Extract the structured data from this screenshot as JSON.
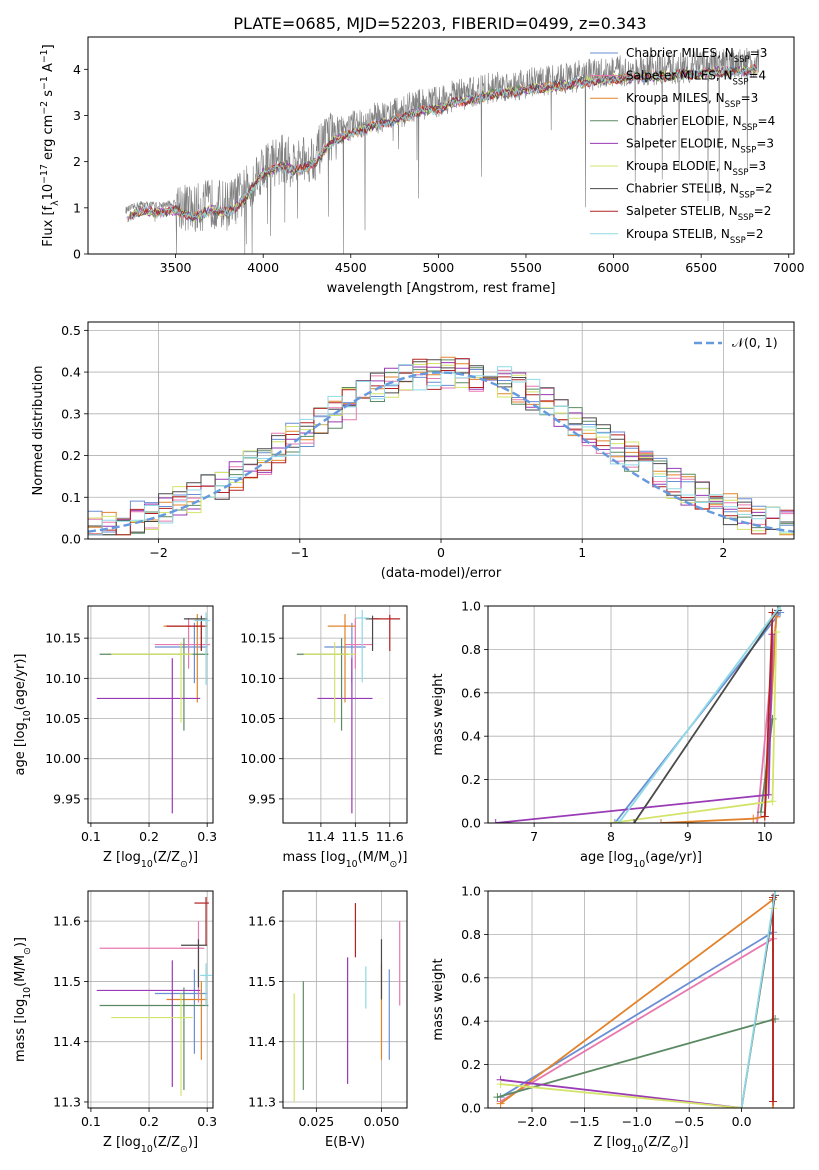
{
  "title": "PLATE=0685, MJD=52203, FIBERID=0499, z=0.343",
  "colors": {
    "model": [
      "#6a8fd4",
      "#e879b0",
      "#e2832c",
      "#5b8a62",
      "#9a3ab5",
      "#d4e36a",
      "#4a4a4a",
      "#b22222",
      "#8fd9e6"
    ],
    "data_spectrum": "#808080",
    "normal": "#6699dd"
  },
  "legend_spectrum": {
    "placement": "upper right",
    "entries": [
      {
        "pre": "Chabrier MILES, N",
        "sub": "SSP",
        "post": "=3"
      },
      {
        "pre": "Salpeter MILES, N",
        "sub": "SSP",
        "post": "=4"
      },
      {
        "pre": "Kroupa MILES, N",
        "sub": "SSP",
        "post": "=3"
      },
      {
        "pre": "Chabrier ELODIE, N",
        "sub": "SSP",
        "post": "=4"
      },
      {
        "pre": "Salpeter ELODIE, N",
        "sub": "SSP",
        "post": "=3"
      },
      {
        "pre": "Kroupa ELODIE, N",
        "sub": "SSP",
        "post": "=3"
      },
      {
        "pre": "Chabrier STELIB, N",
        "sub": "SSP",
        "post": "=2"
      },
      {
        "pre": "Salpeter STELIB, N",
        "sub": "SSP",
        "post": "=2"
      },
      {
        "pre": "Kroupa STELIB, N",
        "sub": "SSP",
        "post": "=2"
      }
    ]
  },
  "legend_hist": {
    "label": "𝒩(0, 1)",
    "placement": "upper right"
  },
  "chart_data": [
    {
      "id": "spectrum",
      "type": "line",
      "xlabel": "wavelength [Angstrom, rest frame]",
      "ylabel": {
        "pre": "Flux [f",
        "sub": "λ",
        "mid": "10",
        "sup1": "−17",
        "post": " erg cm",
        "sup2": "−2",
        "post2": " s",
        "sup3": "−1",
        "post3": " A",
        "sup4": "−1",
        "end": "]"
      },
      "xlim": [
        3000,
        7030
      ],
      "ylim": [
        0,
        4.7
      ],
      "xticks": [
        3500,
        4000,
        4500,
        5000,
        5500,
        6000,
        6500,
        7000
      ],
      "yticks": [
        0,
        1,
        2,
        3,
        4
      ],
      "continuum_x": [
        3220,
        3300,
        3400,
        3500,
        3600,
        3700,
        3800,
        3900,
        4000,
        4100,
        4200,
        4300,
        4400,
        4500,
        4600,
        4700,
        4800,
        4900,
        5000,
        5100,
        5200,
        5300,
        5400,
        5500,
        5600,
        5700,
        5800,
        5900,
        6000,
        6100,
        6200,
        6300,
        6400,
        6500,
        6600,
        6700,
        6800
      ],
      "continuum_y": [
        0.95,
        1.08,
        1.05,
        1.1,
        0.95,
        1.1,
        1.05,
        1.35,
        1.9,
        2.05,
        1.95,
        2.15,
        2.6,
        2.75,
        2.9,
        3.0,
        3.1,
        3.25,
        3.3,
        3.45,
        3.5,
        3.6,
        3.65,
        3.7,
        3.75,
        3.8,
        3.85,
        3.9,
        3.95,
        3.95,
        4.0,
        4.0,
        4.05,
        4.05,
        4.1,
        4.1,
        4.15
      ]
    },
    {
      "id": "residuals",
      "type": "histogram",
      "xlabel": "(data-model)/error",
      "ylabel": "Normed distribution",
      "xlim": [
        -2.5,
        2.5
      ],
      "ylim": [
        0,
        0.52
      ],
      "xticks": [
        -2,
        -1,
        0,
        1,
        2
      ],
      "yticks": [
        0.0,
        0.1,
        0.2,
        0.3,
        0.4,
        0.5
      ],
      "bin_width": 0.1,
      "normal": {
        "mean": 0,
        "sigma": 1
      }
    },
    {
      "id": "age_vs_Z",
      "type": "scatter",
      "xlabel": {
        "pre": "Z [log",
        "sub": "10",
        "mid": "(Z/Z",
        "sub2": "⊙",
        "end": ")]"
      },
      "ylabel": {
        "pre": "age  [log",
        "sub": "10",
        "end": "(age/yr)]"
      },
      "xlim": [
        0.095,
        0.31
      ],
      "ylim": [
        9.92,
        10.19
      ],
      "xticks": [
        0.1,
        0.2,
        0.3
      ],
      "yticks": [
        9.95,
        10.0,
        10.05,
        10.1,
        10.15
      ],
      "points": [
        {
          "x": 0.278,
          "y": 10.139,
          "xerr": [
            0.068,
            0.022
          ],
          "yerr": [
            0.045,
            0.03
          ]
        },
        {
          "x": 0.268,
          "y": 10.142,
          "xerr": [
            0.058,
            0.037
          ],
          "yerr": [
            0.03,
            0.033
          ]
        },
        {
          "x": 0.283,
          "y": 10.165,
          "xerr": [
            0.058,
            0.012
          ],
          "yerr": [
            0.095,
            0.015
          ]
        },
        {
          "x": 0.26,
          "y": 10.13,
          "xerr": [
            0.145,
            0.042
          ],
          "yerr": [
            0.095,
            0.02
          ]
        },
        {
          "x": 0.24,
          "y": 10.075,
          "xerr": [
            0.13,
            0.048
          ],
          "yerr": [
            0.143,
            0.05
          ]
        },
        {
          "x": 0.255,
          "y": 10.13,
          "xerr": [
            0.12,
            0.02
          ],
          "yerr": [
            0.085,
            0.015
          ]
        },
        {
          "x": 0.29,
          "y": 10.174,
          "xerr": [
            0.03,
            0.01
          ],
          "yerr": [
            0.04,
            0.004
          ]
        },
        {
          "x": 0.29,
          "y": 10.165,
          "xerr": [
            0.06,
            0.01
          ],
          "yerr": [
            0.03,
            0.005
          ]
        },
        {
          "x": 0.298,
          "y": 10.172,
          "xerr": [
            0.02,
            0.007
          ],
          "yerr": [
            0.08,
            0.01
          ]
        }
      ]
    },
    {
      "id": "age_vs_mass",
      "type": "scatter",
      "xlabel": {
        "pre": "mass [log",
        "sub": "10",
        "mid": "(M/M",
        "sub2": "⊙",
        "end": ")]"
      },
      "ylabel": "",
      "xlim": [
        11.29,
        11.65
      ],
      "ylim": [
        9.92,
        10.19
      ],
      "xticks": [
        11.4,
        11.5,
        11.6
      ],
      "yticks": [
        9.95,
        10.0,
        10.05,
        10.1,
        10.15
      ],
      "points": [
        {
          "x": 11.49,
          "y": 10.139,
          "xerr": [
            0.08,
            0.04
          ],
          "yerr": [
            0.045,
            0.03
          ]
        },
        {
          "x": 11.5,
          "y": 10.142,
          "xerr": [
            0.03,
            0.05
          ],
          "yerr": [
            0.03,
            0.033
          ]
        },
        {
          "x": 11.47,
          "y": 10.165,
          "xerr": [
            0.05,
            0.03
          ],
          "yerr": [
            0.095,
            0.015
          ]
        },
        {
          "x": 11.46,
          "y": 10.13,
          "xerr": [
            0.13,
            0.02
          ],
          "yerr": [
            0.095,
            0.02
          ]
        },
        {
          "x": 11.49,
          "y": 10.075,
          "xerr": [
            0.1,
            0.06
          ],
          "yerr": [
            0.143,
            0.05
          ]
        },
        {
          "x": 11.44,
          "y": 10.13,
          "xerr": [
            0.09,
            0.06
          ],
          "yerr": [
            0.085,
            0.015
          ]
        },
        {
          "x": 11.55,
          "y": 10.174,
          "xerr": [
            0.02,
            0.02
          ],
          "yerr": [
            0.04,
            0.004
          ]
        },
        {
          "x": 11.6,
          "y": 10.174,
          "xerr": [
            0.05,
            0.03
          ],
          "yerr": [
            0.04,
            0.005
          ]
        },
        {
          "x": 11.52,
          "y": 10.175,
          "xerr": [
            0.02,
            0.02
          ],
          "yerr": [
            0.08,
            0.01
          ]
        }
      ]
    },
    {
      "id": "weight_vs_age",
      "type": "line",
      "xlabel": {
        "pre": "age  [log",
        "sub": "10",
        "end": "(age/yr)]"
      },
      "ylabel": "mass weight",
      "xlim": [
        6.4,
        10.38
      ],
      "ylim": [
        0,
        1.0
      ],
      "xticks": [
        7,
        8,
        9,
        10
      ],
      "yticks": [
        0.0,
        0.2,
        0.4,
        0.6,
        0.8,
        1.0
      ],
      "series": [
        {
          "x": [
            8.05,
            10.2
          ],
          "y": [
            0.0,
            0.97
          ]
        },
        {
          "x": [
            9.9,
            10.15
          ],
          "y": [
            0.0,
            0.95
          ]
        },
        {
          "x": [
            8.65,
            9.85,
            10.0,
            10.15
          ],
          "y": [
            0.0,
            0.02,
            0.03,
            0.95
          ]
        },
        {
          "x": [
            9.95,
            10.1
          ],
          "y": [
            0.05,
            0.48
          ]
        },
        {
          "x": [
            6.5,
            10.05,
            10.1
          ],
          "y": [
            0.0,
            0.13,
            0.87
          ]
        },
        {
          "x": [
            8.0,
            10.1,
            10.15
          ],
          "y": [
            0.0,
            0.1,
            0.88
          ]
        },
        {
          "x": [
            8.3,
            10.17
          ],
          "y": [
            0.0,
            0.98
          ]
        },
        {
          "x": [
            10.0,
            10.1
          ],
          "y": [
            0.03,
            0.97
          ]
        },
        {
          "x": [
            8.1,
            10.2
          ],
          "y": [
            0.0,
            1.0
          ]
        }
      ]
    },
    {
      "id": "mass_vs_Z",
      "type": "scatter",
      "xlabel": {
        "pre": "Z [log",
        "sub": "10",
        "mid": "(Z/Z",
        "sub2": "⊙",
        "end": ")]"
      },
      "ylabel": {
        "pre": "mass [log",
        "sub": "10",
        "mid": "(M/M",
        "sub2": "⊙",
        "end": ")]"
      },
      "xlim": [
        0.095,
        0.31
      ],
      "ylim": [
        11.29,
        11.65
      ],
      "xticks": [
        0.1,
        0.2,
        0.3
      ],
      "yticks": [
        11.3,
        11.4,
        11.5,
        11.6
      ],
      "points": [
        {
          "x": 0.278,
          "y": 11.48,
          "xerr": [
            0.068,
            0.022
          ],
          "yerr": [
            0.1,
            0.04
          ]
        },
        {
          "x": 0.285,
          "y": 11.555,
          "xerr": [
            0.17,
            0.01
          ],
          "yerr": [
            0.09,
            0.045
          ]
        },
        {
          "x": 0.29,
          "y": 11.47,
          "xerr": [
            0.06,
            0.01
          ],
          "yerr": [
            0.1,
            0.03
          ]
        },
        {
          "x": 0.26,
          "y": 11.46,
          "xerr": [
            0.145,
            0.042
          ],
          "yerr": [
            0.14,
            0.03
          ]
        },
        {
          "x": 0.24,
          "y": 11.485,
          "xerr": [
            0.13,
            0.048
          ],
          "yerr": [
            0.16,
            0.05
          ]
        },
        {
          "x": 0.255,
          "y": 11.44,
          "xerr": [
            0.12,
            0.02
          ],
          "yerr": [
            0.13,
            0.04
          ]
        },
        {
          "x": 0.285,
          "y": 11.56,
          "xerr": [
            0.03,
            0.015
          ],
          "yerr": [
            0.07,
            0.01
          ]
        },
        {
          "x": 0.298,
          "y": 11.63,
          "xerr": [
            0.02,
            0.005
          ],
          "yerr": [
            0.07,
            0.01
          ]
        },
        {
          "x": 0.298,
          "y": 11.51,
          "xerr": [
            0.01,
            0.01
          ],
          "yerr": [
            0.05,
            0.02
          ]
        }
      ]
    },
    {
      "id": "mass_vs_EBV",
      "type": "scatter",
      "xlabel": "E(B-V)",
      "ylabel": "",
      "xlim": [
        0.0122,
        0.0598
      ],
      "ylim": [
        11.29,
        11.65
      ],
      "xticks": [
        0.025,
        0.05
      ],
      "yticks": [
        11.3,
        11.4,
        11.5,
        11.6
      ],
      "points": [
        {
          "x": 0.053,
          "y": 11.45,
          "xerr": [
            0,
            0
          ],
          "yerr": [
            0.08,
            0.07
          ]
        },
        {
          "x": 0.057,
          "y": 11.53,
          "xerr": [
            0,
            0
          ],
          "yerr": [
            0.07,
            0.07
          ]
        },
        {
          "x": 0.05,
          "y": 11.44,
          "xerr": [
            0,
            0
          ],
          "yerr": [
            0.07,
            0.09
          ]
        },
        {
          "x": 0.02,
          "y": 11.41,
          "xerr": [
            0,
            0
          ],
          "yerr": [
            0.09,
            0.09
          ]
        },
        {
          "x": 0.037,
          "y": 11.43,
          "xerr": [
            0,
            0
          ],
          "yerr": [
            0.1,
            0.11
          ]
        },
        {
          "x": 0.0165,
          "y": 11.39,
          "xerr": [
            0,
            0
          ],
          "yerr": [
            0.09,
            0.09
          ]
        },
        {
          "x": 0.05,
          "y": 11.52,
          "xerr": [
            0,
            0
          ],
          "yerr": [
            0.05,
            0.05
          ]
        },
        {
          "x": 0.04,
          "y": 11.585,
          "xerr": [
            0,
            0
          ],
          "yerr": [
            0.045,
            0.045
          ]
        },
        {
          "x": 0.044,
          "y": 11.49,
          "xerr": [
            0,
            0
          ],
          "yerr": [
            0.035,
            0.035
          ]
        }
      ]
    },
    {
      "id": "weight_vs_Z",
      "type": "line",
      "xlabel": {
        "pre": "Z [log",
        "sub": "10",
        "mid": "(Z/Z",
        "sub2": "⊙",
        "end": ")]"
      },
      "ylabel": "mass weight",
      "xlim": [
        -2.42,
        0.5
      ],
      "ylim": [
        0,
        1.0
      ],
      "xticks": [
        -2.0,
        -1.5,
        -1.0,
        -0.5,
        0.0
      ],
      "yticks": [
        0.0,
        0.2,
        0.4,
        0.6,
        0.8,
        1.0
      ],
      "series": [
        {
          "x": [
            -2.3,
            0.3
          ],
          "y": [
            0.05,
            0.81
          ]
        },
        {
          "x": [
            -2.3,
            0.3
          ],
          "y": [
            0.03,
            0.78
          ]
        },
        {
          "x": [
            -2.3,
            0.3,
            0.3
          ],
          "y": [
            0.02,
            0.96,
            0.0
          ]
        },
        {
          "x": [
            -2.33,
            0.32
          ],
          "y": [
            0.05,
            0.41
          ]
        },
        {
          "x": [
            -2.3,
            0.0
          ],
          "y": [
            0.13,
            0.0
          ]
        },
        {
          "x": [
            -2.3,
            0.0,
            0.3
          ],
          "y": [
            0.11,
            0.0,
            0.92
          ]
        },
        {
          "x": [
            0.0,
            0.32
          ],
          "y": [
            0.0,
            0.98
          ]
        },
        {
          "x": [
            0.3,
            0.3
          ],
          "y": [
            0.03,
            0.97
          ]
        },
        {
          "x": [
            0.0,
            0.32
          ],
          "y": [
            0.0,
            1.0
          ]
        }
      ]
    }
  ]
}
